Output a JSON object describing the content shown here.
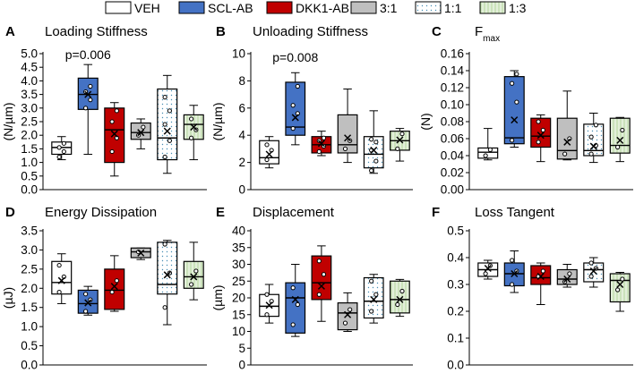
{
  "legend": {
    "items": [
      {
        "label": "VEH",
        "color": "#ffffff",
        "pattern": "none"
      },
      {
        "label": "SCL-AB",
        "color": "#4472c4",
        "pattern": "none"
      },
      {
        "label": "DKK1-AB",
        "color": "#c00000",
        "pattern": "none"
      },
      {
        "label": "3:1",
        "color": "#bfbfbf",
        "pattern": "none"
      },
      {
        "label": "1:1",
        "color": "#ffffff",
        "pattern": "dots"
      },
      {
        "label": "1:3",
        "color": "#e2efd9",
        "pattern": "stripes"
      }
    ]
  },
  "chart_data": [
    {
      "panel": "A",
      "type": "box",
      "title": "Loading Stiffness",
      "ylabel": "(N/µm)",
      "ylim": [
        0,
        5
      ],
      "yticks": [
        0,
        0.5,
        1,
        1.5,
        2,
        2.5,
        3,
        3.5,
        4,
        4.5,
        5
      ],
      "annotation": {
        "text": "p=0.006",
        "at_group": 1,
        "y": 4.6
      },
      "groups": [
        {
          "name": "VEH",
          "min": 1.1,
          "q1": 1.3,
          "median": 1.55,
          "q3": 1.75,
          "max": 1.95,
          "mean": null,
          "points": [
            1.2,
            1.4,
            1.55,
            1.7
          ]
        },
        {
          "name": "SCL-AB",
          "min": 1.3,
          "q1": 2.95,
          "median": 3.5,
          "q3": 4.1,
          "max": 4.6,
          "mean": 3.5,
          "points": [
            3.0,
            3.3,
            3.6,
            3.8
          ]
        },
        {
          "name": "DKK1-AB",
          "min": 0.5,
          "q1": 1.0,
          "median": 2.2,
          "q3": 3.0,
          "max": 3.2,
          "mean": 2.05,
          "points": [
            1.4,
            1.9,
            2.5,
            2.9
          ]
        },
        {
          "name": "3:1",
          "min": 1.5,
          "q1": 1.85,
          "median": 2.1,
          "q3": 2.45,
          "max": 2.6,
          "mean": 2.1,
          "points": [
            2.0,
            2.3
          ]
        },
        {
          "name": "1:1",
          "min": 0.6,
          "q1": 1.1,
          "median": 1.9,
          "q3": 3.7,
          "max": 4.2,
          "mean": 2.15,
          "points": [
            1.2,
            1.8,
            2.4,
            2.9,
            3.4
          ]
        },
        {
          "name": "1:3",
          "min": 1.1,
          "q1": 1.85,
          "median": 2.4,
          "q3": 2.75,
          "max": 3.1,
          "mean": 2.3,
          "points": [
            1.9,
            2.2,
            2.6
          ]
        }
      ]
    },
    {
      "panel": "B",
      "type": "box",
      "title": "Unloading Stiffness",
      "ylabel": "(N/µm)",
      "ylim": [
        0,
        10
      ],
      "yticks": [
        0,
        2,
        4,
        6,
        8,
        10
      ],
      "annotation": {
        "text": "p=0.008",
        "at_group": 1,
        "y": 9.0
      },
      "groups": [
        {
          "name": "VEH",
          "min": 1.6,
          "q1": 1.9,
          "median": 2.35,
          "q3": 3.6,
          "max": 3.9,
          "mean": 2.6,
          "points": [
            2.2,
            2.9,
            3.3
          ]
        },
        {
          "name": "SCL-AB",
          "min": 3.3,
          "q1": 4.0,
          "median": 4.6,
          "q3": 7.9,
          "max": 8.6,
          "mean": 5.3,
          "points": [
            4.5,
            5.6,
            6.2,
            7.6
          ]
        },
        {
          "name": "DKK1-AB",
          "min": 2.5,
          "q1": 2.7,
          "median": 3.3,
          "q3": 3.9,
          "max": 4.3,
          "mean": 3.4,
          "points": [
            2.8,
            3.2,
            3.6,
            3.8
          ]
        },
        {
          "name": "3:1",
          "min": 2.0,
          "q1": 2.7,
          "median": 3.3,
          "q3": 5.5,
          "max": 7.4,
          "mean": 3.8,
          "points": [
            3.0,
            3.6
          ]
        },
        {
          "name": "1:1",
          "min": 1.2,
          "q1": 1.6,
          "median": 2.6,
          "q3": 3.9,
          "max": 5.8,
          "mean": 2.9,
          "points": [
            1.4,
            2.1,
            2.9,
            3.5,
            3.7
          ]
        },
        {
          "name": "1:3",
          "min": 2.1,
          "q1": 2.9,
          "median": 3.6,
          "q3": 4.3,
          "max": 4.5,
          "mean": 3.65,
          "points": [
            3.0,
            4.1
          ]
        }
      ]
    },
    {
      "panel": "C",
      "type": "box",
      "title": "F",
      "title_sub": "max",
      "ylabel": "(N)",
      "ylim": [
        0,
        0.16
      ],
      "yticks": [
        0,
        0.02,
        0.04,
        0.06,
        0.08,
        0.1,
        0.12,
        0.14,
        0.16
      ],
      "annotation": null,
      "groups": [
        {
          "name": "VEH",
          "min": 0.035,
          "q1": 0.037,
          "median": 0.044,
          "q3": 0.049,
          "max": 0.072,
          "mean": null,
          "points": [
            0.04,
            0.047
          ]
        },
        {
          "name": "SCL-AB",
          "min": 0.05,
          "q1": 0.054,
          "median": 0.061,
          "q3": 0.133,
          "max": 0.14,
          "mean": 0.082,
          "points": [
            0.058,
            0.103,
            0.125,
            0.136
          ]
        },
        {
          "name": "DKK1-AB",
          "min": 0.033,
          "q1": 0.05,
          "median": 0.063,
          "q3": 0.084,
          "max": 0.088,
          "mean": 0.064,
          "points": [
            0.056,
            0.07,
            0.08
          ]
        },
        {
          "name": "3:1",
          "min": 0.035,
          "q1": 0.036,
          "median": 0.046,
          "q3": 0.084,
          "max": 0.116,
          "mean": 0.056,
          "points": [
            0.042,
            0.06
          ]
        },
        {
          "name": "1:1",
          "min": 0.032,
          "q1": 0.04,
          "median": 0.046,
          "q3": 0.077,
          "max": 0.09,
          "mean": 0.051,
          "points": [
            0.042,
            0.052,
            0.062,
            0.076
          ]
        },
        {
          "name": "1:3",
          "min": 0.033,
          "q1": 0.043,
          "median": 0.052,
          "q3": 0.084,
          "max": 0.085,
          "mean": 0.058,
          "points": [
            0.05,
            0.07
          ]
        }
      ]
    },
    {
      "panel": "D",
      "type": "box",
      "title": "Energy Dissipation",
      "ylabel": "(µJ)",
      "ylim": [
        0,
        3.5
      ],
      "yticks": [
        0,
        0.5,
        1,
        1.5,
        2,
        2.5,
        3,
        3.5
      ],
      "annotation": null,
      "groups": [
        {
          "name": "VEH",
          "min": 1.6,
          "q1": 1.85,
          "median": 2.15,
          "q3": 2.7,
          "max": 2.9,
          "mean": 2.2,
          "points": [
            1.9,
            2.3,
            2.6
          ]
        },
        {
          "name": "SCL-AB",
          "min": 1.3,
          "q1": 1.35,
          "median": 1.6,
          "q3": 1.95,
          "max": 2.05,
          "mean": 1.62,
          "points": [
            1.4,
            1.7,
            1.85
          ]
        },
        {
          "name": "DKK1-AB",
          "min": 1.4,
          "q1": 1.45,
          "median": 1.95,
          "q3": 2.5,
          "max": 2.85,
          "mean": 2.05,
          "points": [
            1.9,
            2.2
          ]
        },
        {
          "name": "3:1",
          "min": 2.75,
          "q1": 2.8,
          "median": 2.95,
          "q3": 3.05,
          "max": 3.05,
          "mean": 2.92,
          "points": [
            2.95
          ]
        },
        {
          "name": "1:1",
          "min": 1.05,
          "q1": 1.85,
          "median": 2.1,
          "q3": 3.2,
          "max": 3.25,
          "mean": 2.35,
          "points": [
            1.5,
            2.4,
            3.15
          ]
        },
        {
          "name": "1:3",
          "min": 1.7,
          "q1": 2.0,
          "median": 2.3,
          "q3": 2.7,
          "max": 3.2,
          "mean": 2.3,
          "points": [
            2.1,
            2.45
          ]
        }
      ]
    },
    {
      "panel": "E",
      "type": "box",
      "title": "Displacement",
      "ylabel": "(µm)",
      "ylim": [
        0,
        40
      ],
      "yticks": [
        0,
        5,
        10,
        15,
        20,
        25,
        30,
        35,
        40
      ],
      "annotation": null,
      "groups": [
        {
          "name": "VEH",
          "min": 12.5,
          "q1": 14.5,
          "median": 17.5,
          "q3": 21.0,
          "max": 24.0,
          "mean": 17.8,
          "points": [
            15,
            19,
            21
          ]
        },
        {
          "name": "SCL-AB",
          "min": 8.5,
          "q1": 9.5,
          "median": 20.0,
          "q3": 24.5,
          "max": 30.0,
          "mean": 19.5,
          "points": [
            12,
            18,
            23
          ]
        },
        {
          "name": "DKK1-AB",
          "min": 13.0,
          "q1": 19.5,
          "median": 24.5,
          "q3": 32.5,
          "max": 35.5,
          "mean": 23.5,
          "points": [
            21,
            27,
            31
          ]
        },
        {
          "name": "3:1",
          "min": 10.0,
          "q1": 10.5,
          "median": 15.5,
          "q3": 18.5,
          "max": 21.5,
          "mean": 15.0,
          "points": [
            12.5,
            16.5
          ]
        },
        {
          "name": "1:1",
          "min": 12.5,
          "q1": 14.0,
          "median": 19.0,
          "q3": 26.0,
          "max": 27.0,
          "mean": 19.5,
          "points": [
            16,
            21,
            25
          ]
        },
        {
          "name": "1:3",
          "min": 14.5,
          "q1": 15.5,
          "median": 19.5,
          "q3": 25.0,
          "max": 25.5,
          "mean": 19.5,
          "points": [
            18,
            22
          ]
        }
      ]
    },
    {
      "panel": "F",
      "type": "box",
      "title": "Loss Tangent",
      "ylabel": "",
      "ylim": [
        0,
        0.5
      ],
      "yticks": [
        0,
        0.1,
        0.2,
        0.3,
        0.4,
        0.5
      ],
      "annotation": null,
      "groups": [
        {
          "name": "VEH",
          "min": 0.32,
          "q1": 0.33,
          "median": 0.355,
          "q3": 0.38,
          "max": 0.39,
          "mean": 0.36,
          "points": [
            0.34,
            0.37
          ]
        },
        {
          "name": "SCL-AB",
          "min": 0.27,
          "q1": 0.295,
          "median": 0.34,
          "q3": 0.38,
          "max": 0.425,
          "mean": 0.34,
          "points": [
            0.3,
            0.35,
            0.39
          ]
        },
        {
          "name": "DKK1-AB",
          "min": 0.225,
          "q1": 0.3,
          "median": 0.325,
          "q3": 0.37,
          "max": 0.38,
          "mean": 0.33,
          "points": [
            0.33,
            0.35
          ]
        },
        {
          "name": "3:1",
          "min": 0.29,
          "q1": 0.3,
          "median": 0.32,
          "q3": 0.355,
          "max": 0.375,
          "mean": 0.32,
          "points": [
            0.31,
            0.34
          ]
        },
        {
          "name": "1:1",
          "min": 0.29,
          "q1": 0.31,
          "median": 0.355,
          "q3": 0.38,
          "max": 0.4,
          "mean": 0.35,
          "points": [
            0.33,
            0.36,
            0.38
          ]
        },
        {
          "name": "1:3",
          "min": 0.2,
          "q1": 0.235,
          "median": 0.315,
          "q3": 0.34,
          "max": 0.345,
          "mean": 0.3,
          "points": [
            0.28,
            0.32
          ]
        }
      ]
    }
  ]
}
